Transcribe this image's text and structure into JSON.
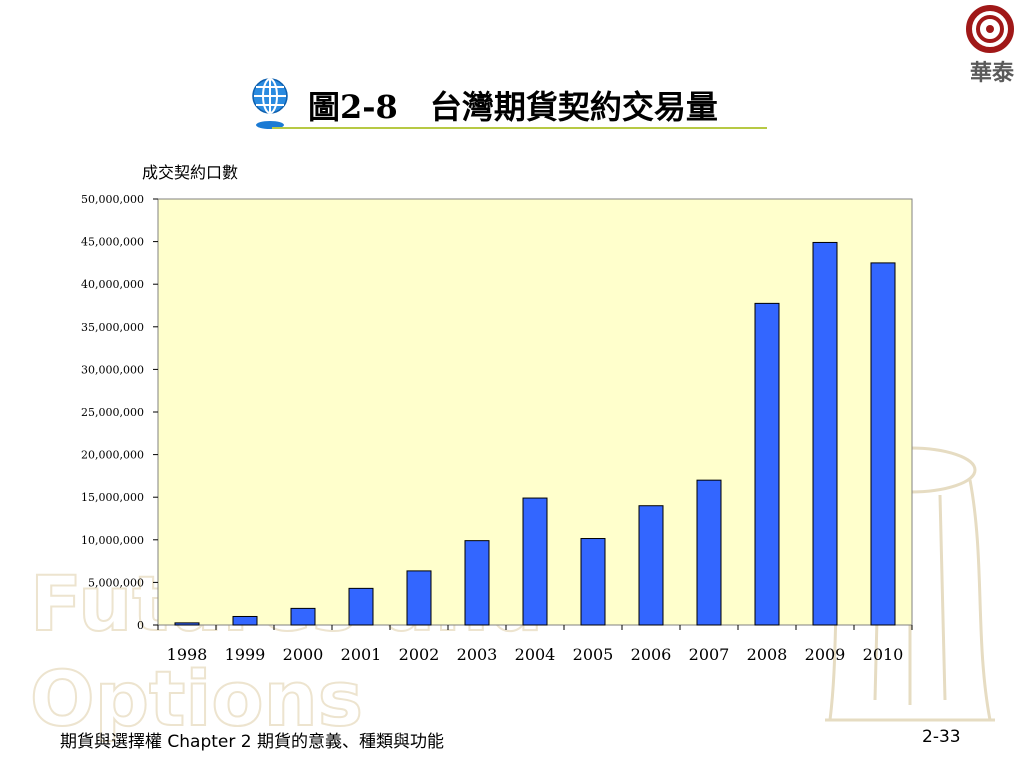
{
  "brand": {
    "logo_text": "華泰",
    "color": "#a01818"
  },
  "slide": {
    "title": "圖2-8　台灣期貨契約交易量",
    "footer_left": "期貨與選擇權   Chapter 2  期貨的意義、種類與功能",
    "page_number": "2-33",
    "watermark_words": [
      "Futures and",
      "Options"
    ]
  },
  "chart_data": {
    "type": "bar",
    "title": "",
    "ylabel": "成交契約口數",
    "xlabel": "",
    "categories": [
      "1998",
      "1999",
      "2000",
      "2001",
      "2002",
      "2003",
      "2004",
      "2005",
      "2006",
      "2007",
      "2008",
      "2009",
      "2010"
    ],
    "values": [
      250000,
      1000000,
      1950000,
      4300000,
      6350000,
      9900000,
      14900000,
      10150000,
      14000000,
      17000000,
      37750000,
      44900000,
      42500000
    ],
    "yticks": [
      "0",
      "5,000,000",
      "10,000,000",
      "15,000,000",
      "20,000,000",
      "25,000,000",
      "30,000,000",
      "35,000,000",
      "40,000,000",
      "45,000,000",
      "50,000,000"
    ],
    "ylim": [
      0,
      50000000
    ],
    "grid": false,
    "legend": "none",
    "bar_color": "#3366ff",
    "plot_background": "#ffffcc"
  }
}
